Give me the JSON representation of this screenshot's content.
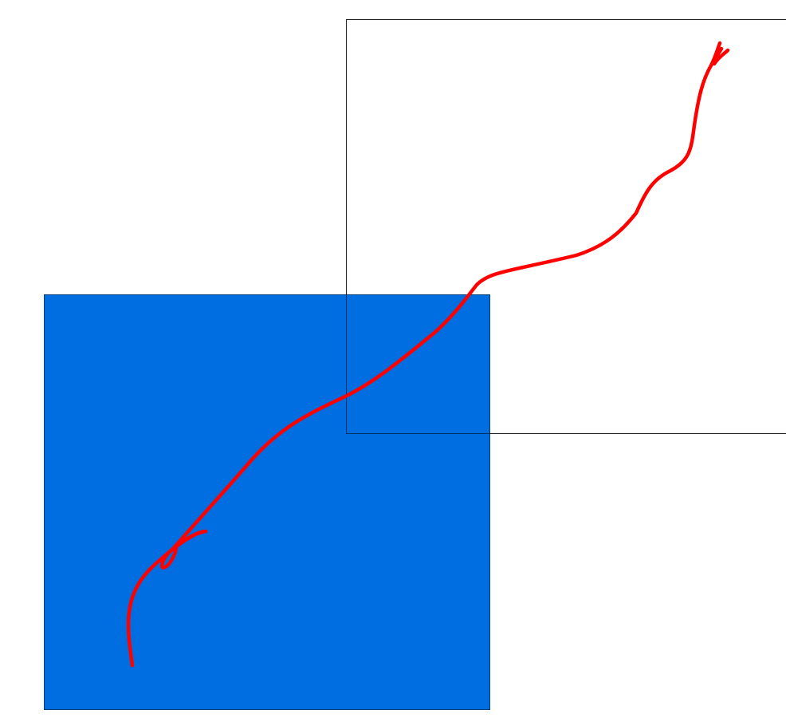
{
  "colors": {
    "page_background": "#ffffff",
    "blue_box_fill": "#006ee0",
    "blue_box_border": "#0a3f7a",
    "target_outline": "#222222",
    "drag_path": "#ff0000"
  },
  "elements": {
    "blue_box": "draggable-blue-square",
    "target_outline": "drop-target-outline",
    "drag_path": "mouse-drag-trail"
  }
}
